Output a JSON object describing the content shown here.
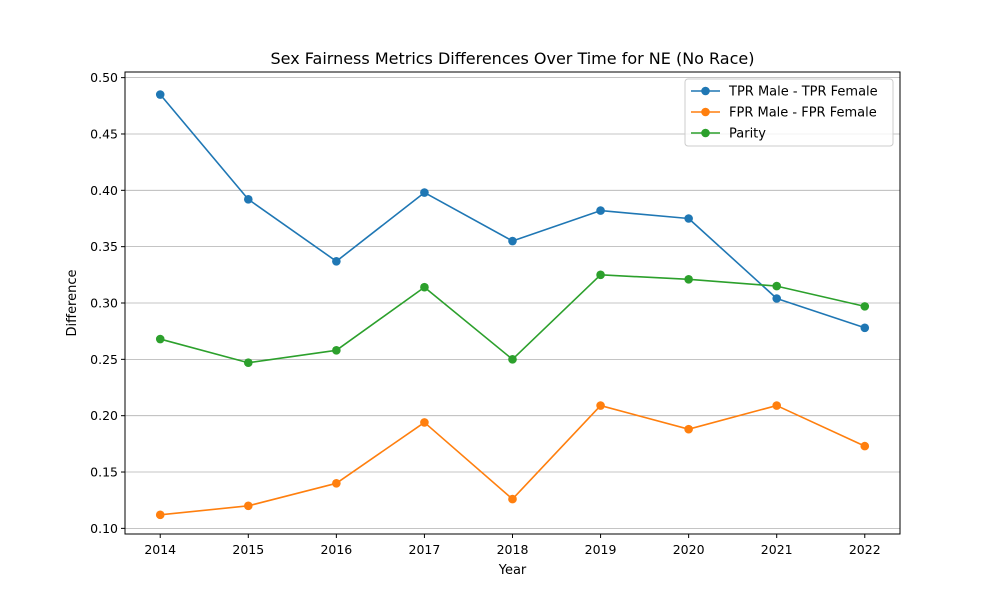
{
  "chart_data": {
    "type": "line",
    "title": "Sex Fairness Metrics Differences Over Time for NE (No Race)",
    "xlabel": "Year",
    "ylabel": "Difference",
    "x": [
      "2014",
      "2015",
      "2016",
      "2017",
      "2018",
      "2019",
      "2020",
      "2021",
      "2022"
    ],
    "xlim": [
      2013.6,
      2022.4
    ],
    "ylim": [
      0.095,
      0.505
    ],
    "yticks": [
      "0.10",
      "0.15",
      "0.20",
      "0.25",
      "0.30",
      "0.35",
      "0.40",
      "0.45",
      "0.50"
    ],
    "grid": "horizontal",
    "legend_position": "upper right",
    "series": [
      {
        "name": "TPR Male - TPR Female",
        "color": "#1f77b4",
        "values": [
          0.485,
          0.392,
          0.337,
          0.398,
          0.355,
          0.382,
          0.375,
          0.304,
          0.278
        ]
      },
      {
        "name": "FPR Male - FPR Female",
        "color": "#ff7f0e",
        "values": [
          0.112,
          0.12,
          0.14,
          0.194,
          0.126,
          0.209,
          0.188,
          0.209,
          0.173
        ]
      },
      {
        "name": "Parity",
        "color": "#2ca02c",
        "values": [
          0.268,
          0.247,
          0.258,
          0.314,
          0.25,
          0.325,
          0.321,
          0.315,
          0.297
        ]
      }
    ]
  }
}
